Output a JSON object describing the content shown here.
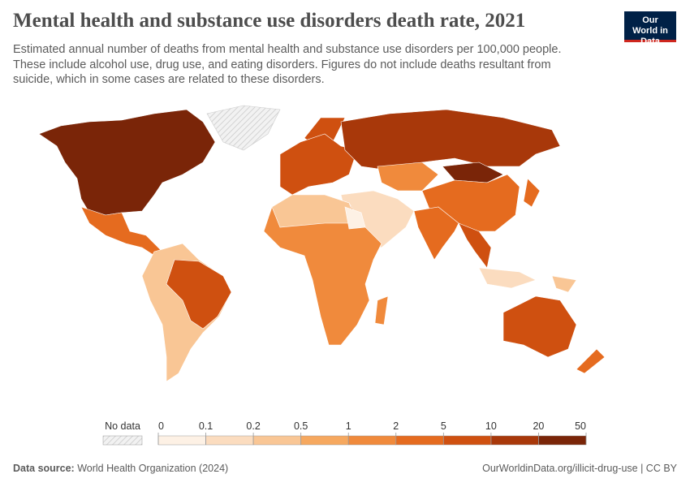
{
  "header": {
    "title": "Mental health and substance use disorders death rate, 2021",
    "subtitle": "Estimated annual number of deaths from mental health and substance use disorders per 100,000 people. These include alcohol use, drug use, and eating disorders. Figures do not include deaths resultant from suicide, which in some cases are related to these disorders.",
    "logo": "Our World in Data"
  },
  "legend": {
    "no_data": "No data",
    "bins": [
      0,
      0.1,
      0.2,
      0.5,
      1,
      2,
      5,
      10,
      20,
      50
    ],
    "colors": [
      "#fdf1e5",
      "#fbdcbf",
      "#f9c695",
      "#f6a85f",
      "#f08a3c",
      "#e56b1f",
      "#cf5010",
      "#a8380a",
      "#7a2508"
    ]
  },
  "footer": {
    "source_label": "Data source:",
    "source": "World Health Organization (2024)",
    "url": "OurWorldinData.org/illicit-drug-use | CC BY"
  }
}
